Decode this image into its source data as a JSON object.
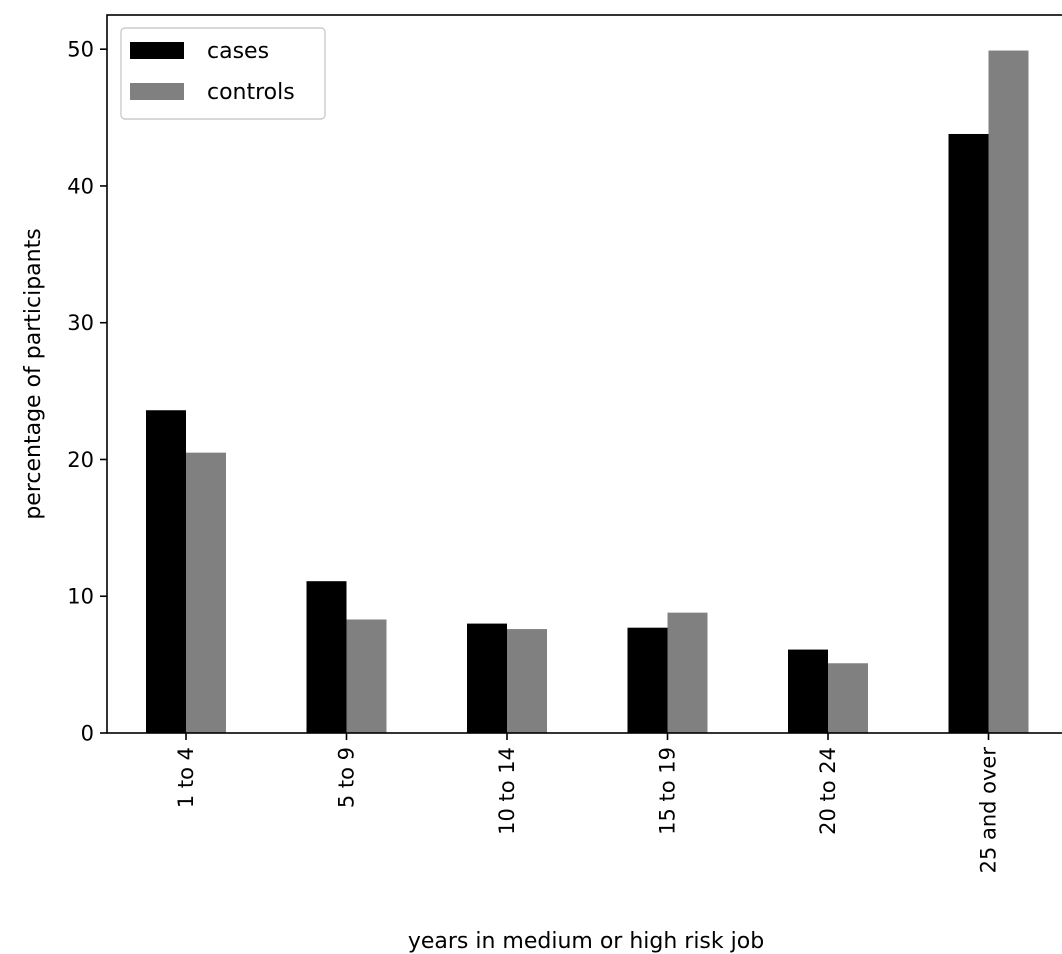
{
  "chart_data": {
    "type": "bar",
    "title": "",
    "xlabel": "years in medium or high risk job",
    "ylabel": "percentage of participants",
    "categories": [
      "1 to 4",
      "5 to 9",
      "10 to 14",
      "15 to 19",
      "20 to 24",
      "25 and over"
    ],
    "series": [
      {
        "name": "cases",
        "color": "#000000",
        "values": [
          23.6,
          11.1,
          8.0,
          7.7,
          6.1,
          43.8
        ]
      },
      {
        "name": "controls",
        "color": "#808080",
        "values": [
          20.5,
          8.3,
          7.6,
          8.8,
          5.1,
          49.9
        ]
      }
    ],
    "ylim": [
      0,
      52.5
    ],
    "yticks": [
      0,
      10,
      20,
      30,
      40,
      50
    ],
    "xtick_rotation": "vertical",
    "grid": false,
    "legend": "upper-left"
  }
}
